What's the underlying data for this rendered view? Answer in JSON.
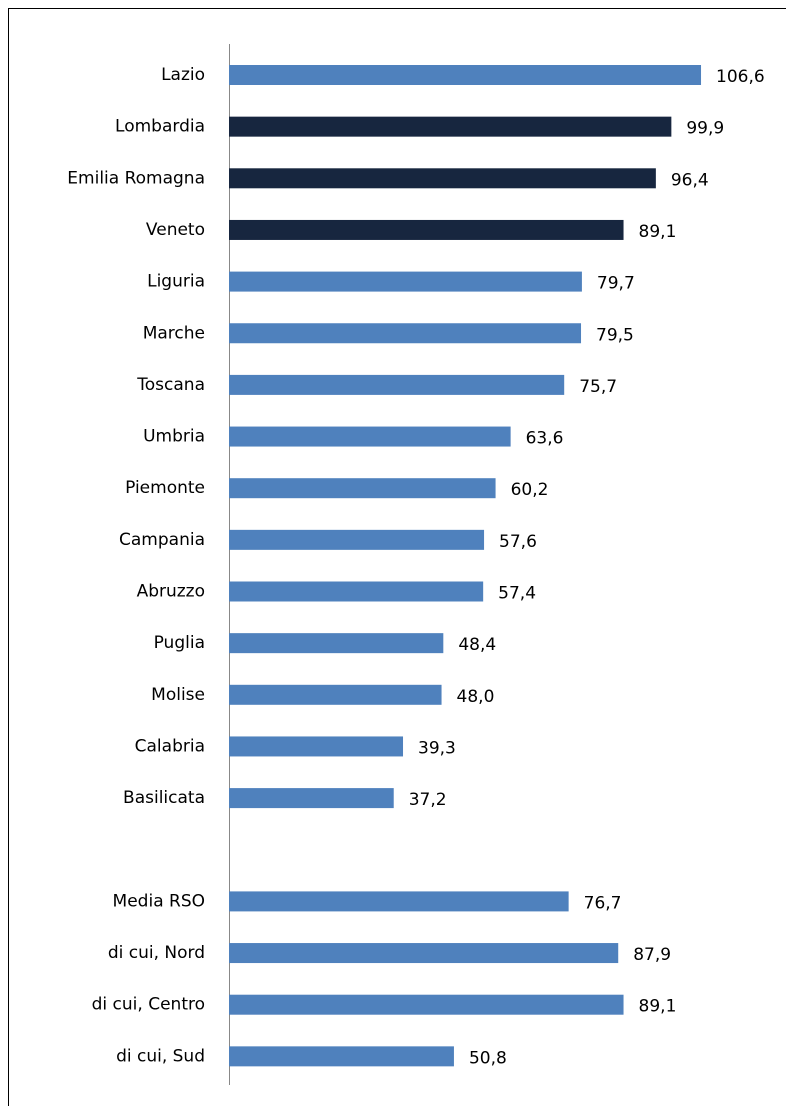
{
  "chart_data": {
    "type": "barh",
    "categories": [
      "Lazio",
      "Lombardia",
      "Emilia Romagna",
      "Veneto",
      "Liguria",
      "Marche",
      "Toscana",
      "Umbria",
      "Piemonte",
      "Campania",
      "Abruzzo",
      "Puglia",
      "Molise",
      "Calabria",
      "Basilicata",
      null,
      "Media RSO",
      "di cui, Nord",
      "di cui, Centro",
      "di cui, Sud"
    ],
    "values": [
      106.6,
      99.9,
      96.4,
      89.1,
      79.7,
      79.5,
      75.7,
      63.6,
      60.2,
      57.6,
      57.4,
      48.4,
      48.0,
      39.3,
      37.2,
      null,
      76.7,
      87.9,
      89.1,
      50.8
    ],
    "value_labels": [
      "106,6",
      "99,9",
      "96,4",
      "89,1",
      "79,7",
      "79,5",
      "75,7",
      "63,6",
      "60,2",
      "57,6",
      "57,4",
      "48,4",
      "48,0",
      "39,3",
      "37,2",
      null,
      "76,7",
      "87,9",
      "89,1",
      "50,8"
    ],
    "colors": [
      "#4f81bd",
      "#17263f",
      "#17263f",
      "#17263f",
      "#4f81bd",
      "#4f81bd",
      "#4f81bd",
      "#4f81bd",
      "#4f81bd",
      "#4f81bd",
      "#4f81bd",
      "#4f81bd",
      "#4f81bd",
      "#4f81bd",
      "#4f81bd",
      null,
      "#4f81bd",
      "#4f81bd",
      "#4f81bd",
      "#4f81bd"
    ],
    "xlim": [
      0,
      120
    ]
  }
}
